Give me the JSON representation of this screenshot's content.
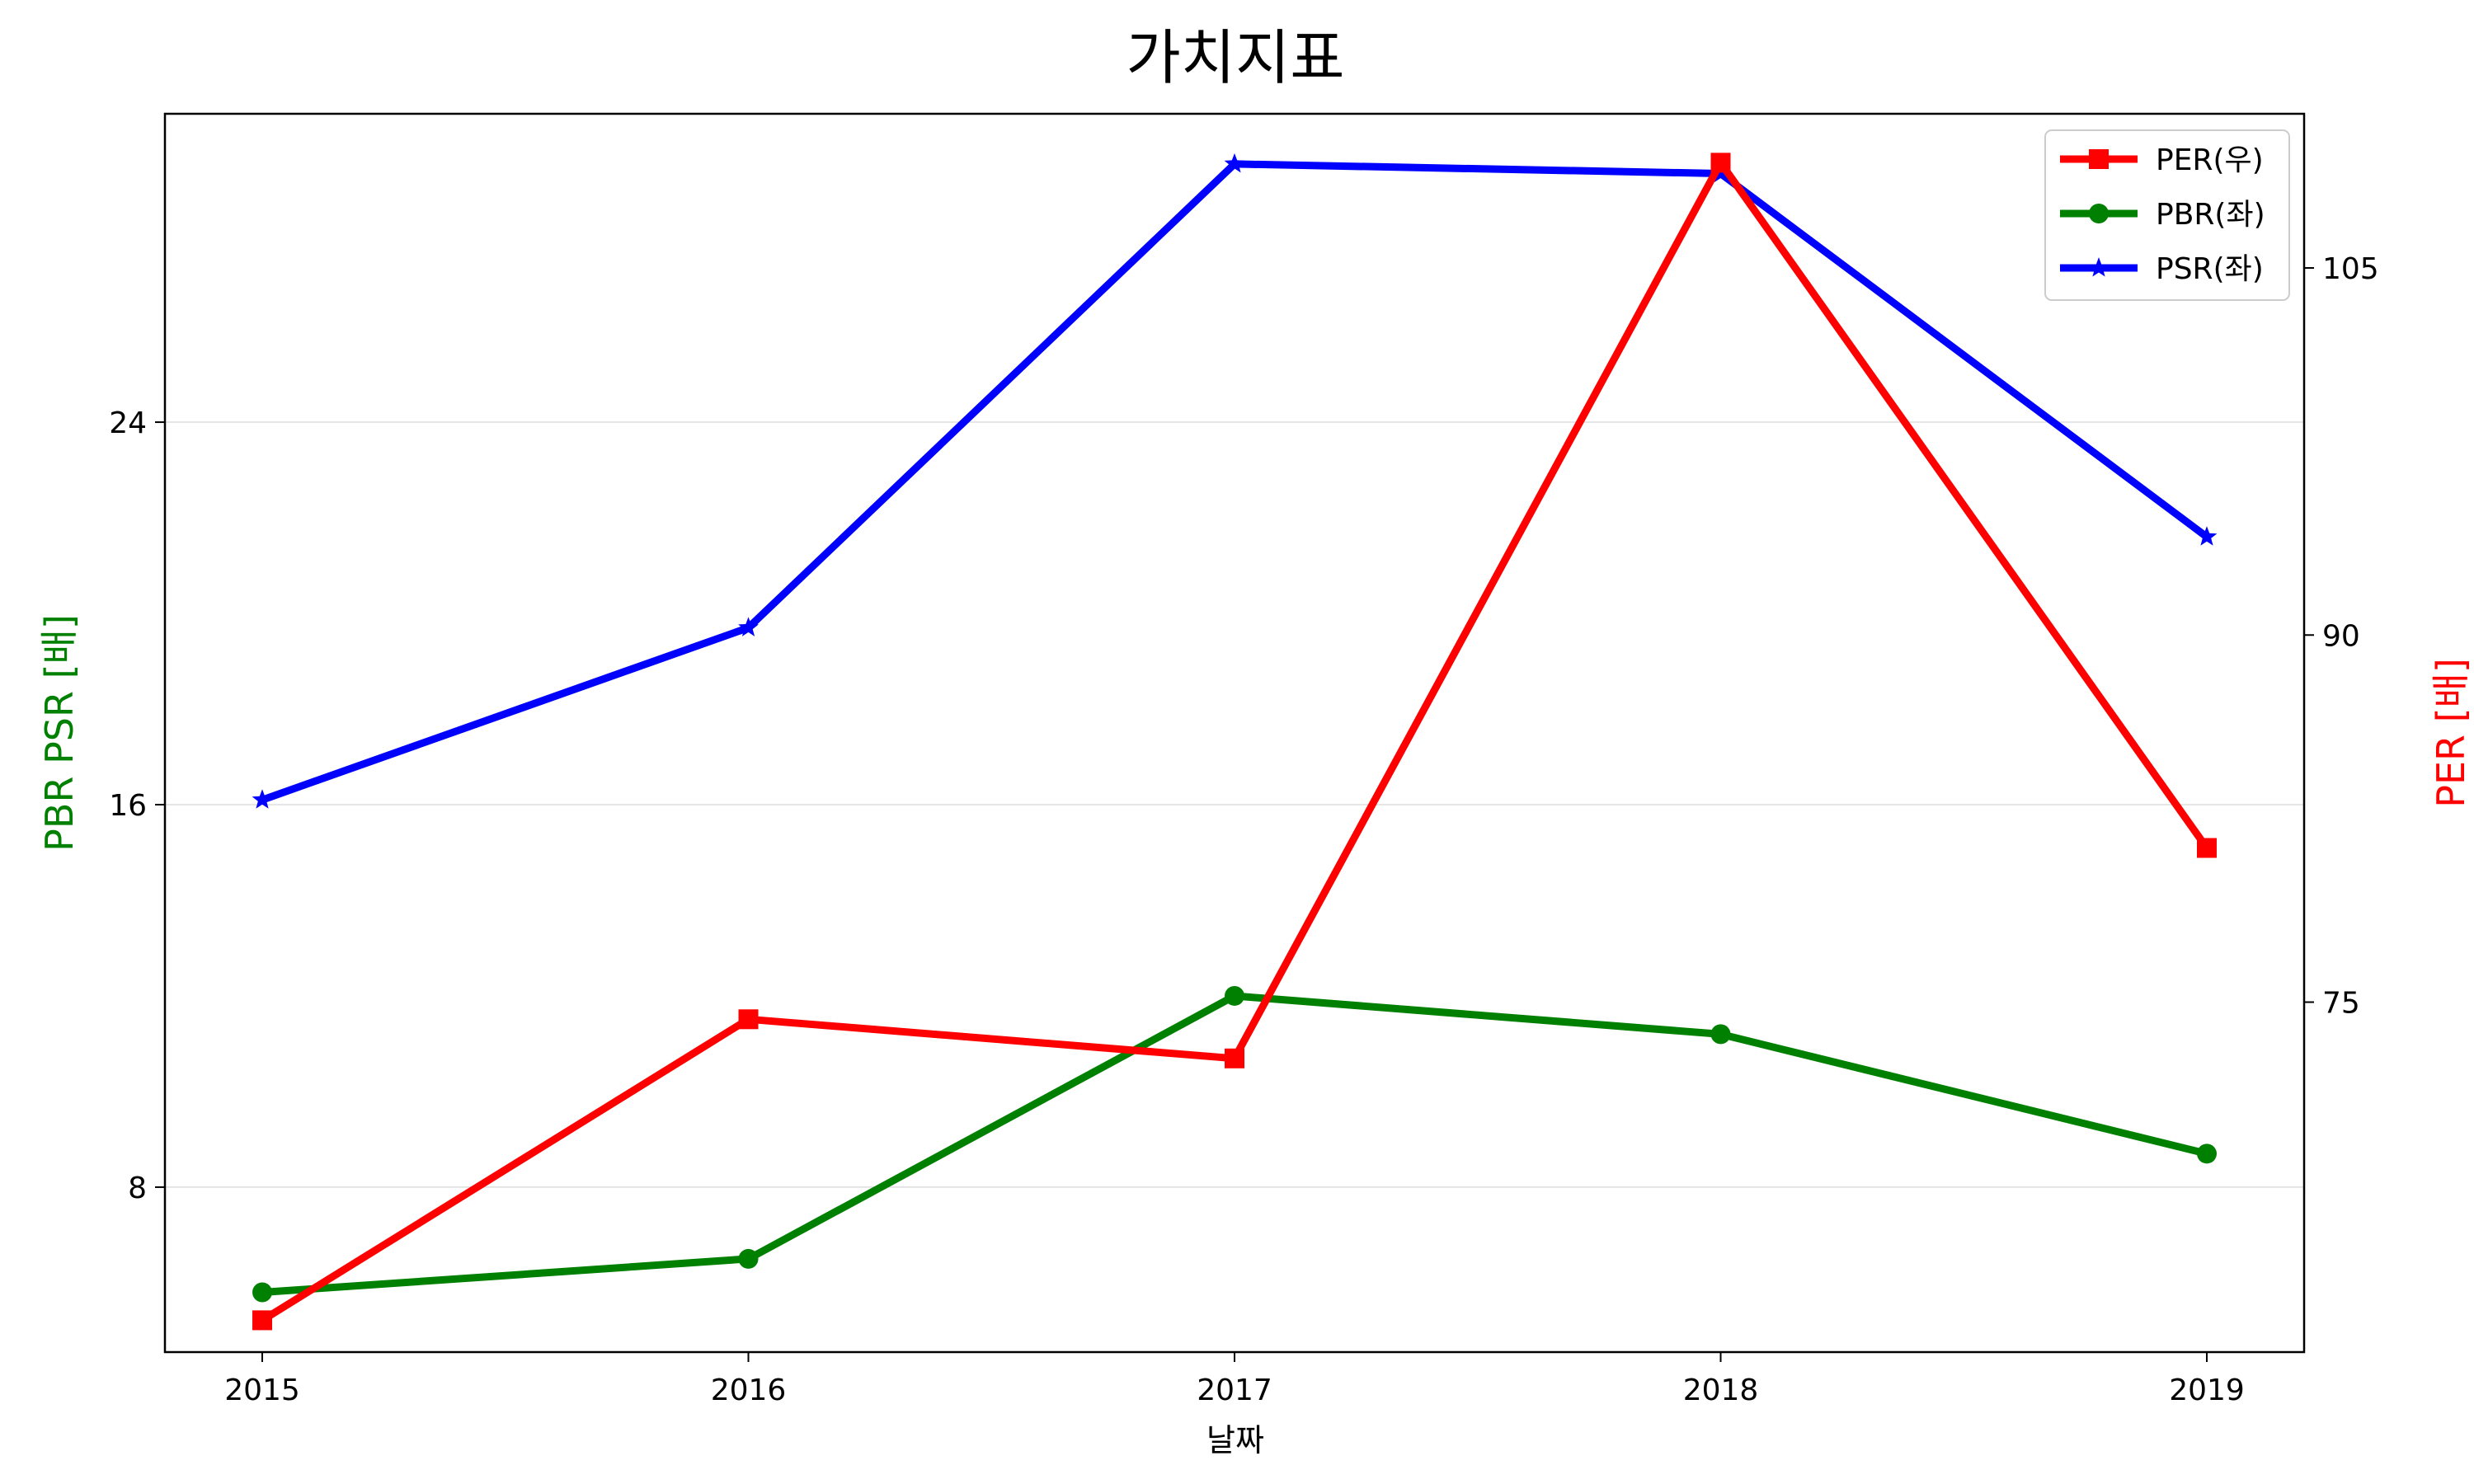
{
  "chart_data": {
    "type": "line",
    "title": "가치지표",
    "xlabel": "날짜",
    "ylabel_left": "PBR PSR [배]",
    "ylabel_right": "PER [배]",
    "categories": [
      "2015",
      "2016",
      "2017",
      "2018",
      "2019"
    ],
    "yticks_left": [
      8,
      16,
      24
    ],
    "yticks_right": [
      75,
      90,
      105
    ],
    "ylim_left": [
      4.55,
      30.45
    ],
    "ylim_right": [
      60.7,
      111.3
    ],
    "grid": "horizontal (left axis)",
    "legend_position": "top-right",
    "series": [
      {
        "name": "PER(우)",
        "axis": "right",
        "marker": "square",
        "color": "#ff0000",
        "values": [
          62.0,
          74.3,
          72.7,
          109.3,
          81.3
        ]
      },
      {
        "name": "PBR(좌)",
        "axis": "left",
        "marker": "circle",
        "color": "#008000",
        "values": [
          5.8,
          6.5,
          12.0,
          11.2,
          8.7
        ]
      },
      {
        "name": "PSR(좌)",
        "axis": "left",
        "marker": "star",
        "color": "#0000ff",
        "values": [
          16.1,
          19.7,
          29.4,
          29.2,
          21.6
        ]
      }
    ],
    "colors": {
      "ylabel_left": "#008000",
      "ylabel_right": "#ff0000",
      "grid": "#dddddd"
    }
  }
}
